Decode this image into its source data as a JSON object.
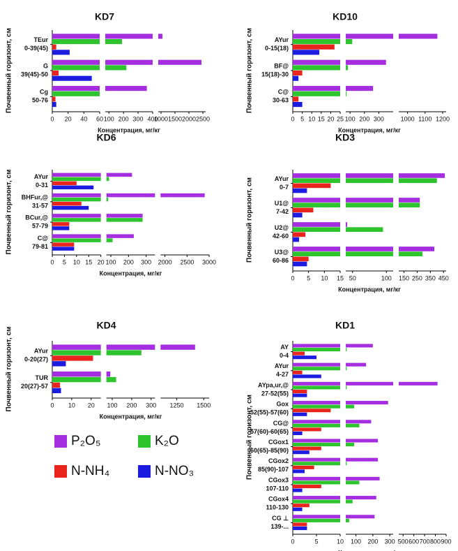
{
  "legend": [
    {
      "name": "P₂O₅",
      "color": "#a52ee0"
    },
    {
      "name": "K₂O",
      "color": "#2ec42e"
    },
    {
      "name": "N-NH₄",
      "color": "#e8241c"
    },
    {
      "name": "N-NO₃",
      "color": "#1c1ce0"
    }
  ],
  "chart_data": [
    {
      "type": "bar",
      "title": "KD7",
      "y_label": "Почвенный горизонт, см",
      "x_label": "Концентрация, мг/кг",
      "categories": [
        [
          "TEur",
          "0-39(45)"
        ],
        [
          "G",
          "39(45)-50"
        ],
        [
          "Cg",
          "50-76"
        ]
      ],
      "segments": [
        {
          "xlim": [
            0,
            60
          ],
          "xticks": [
            0,
            20,
            40,
            60
          ]
        },
        {
          "xlim": [
            75,
            400
          ],
          "xticks": [
            100,
            200,
            300,
            400
          ]
        },
        {
          "xlim": [
            900,
            2600
          ],
          "xticks": [
            1000,
            1500,
            2000,
            2500
          ]
        }
      ],
      "series": [
        {
          "color": "#a52ee0",
          "values": [
            1050,
            2450,
            360
          ]
        },
        {
          "color": "#2ec42e",
          "values": [
            190,
            220,
            60
          ]
        },
        {
          "color": "#e8241c",
          "values": [
            5,
            8,
            4
          ]
        },
        {
          "color": "#1c1ce0",
          "values": [
            22,
            50,
            5
          ]
        }
      ]
    },
    {
      "type": "bar",
      "title": "KD10",
      "y_label": "Почвенный горизонт, см",
      "x_label": "Концентрация, мг/кг",
      "categories": [
        [
          "AYur",
          "0-15(18)"
        ],
        [
          "BF@",
          "15(18)-30"
        ],
        [
          "C@",
          "30-63"
        ]
      ],
      "segments": [
        {
          "xlim": [
            0,
            25
          ],
          "xticks": [
            0,
            5,
            10,
            15,
            20,
            25
          ]
        },
        {
          "xlim": [
            70,
            400
          ],
          "xticks": [
            100,
            200,
            300
          ]
        },
        {
          "xlim": [
            950,
            1220
          ],
          "xticks": [
            1000,
            1100,
            1200
          ]
        }
      ],
      "series": [
        {
          "color": "#a52ee0",
          "values": [
            1170,
            350,
            260
          ]
        },
        {
          "color": "#2ec42e",
          "values": [
            115,
            85,
            75
          ]
        },
        {
          "color": "#e8241c",
          "values": [
            22,
            5,
            3
          ]
        },
        {
          "color": "#1c1ce0",
          "values": [
            14,
            3,
            5
          ]
        }
      ]
    },
    {
      "type": "bar",
      "title": "KD6",
      "y_label": "Почвенный горизонт, см",
      "x_label": "Концентрация, мг/кг",
      "categories": [
        [
          "AYur",
          "0-31"
        ],
        [
          "BHFur,@",
          "31-57"
        ],
        [
          "BCur,@",
          "57-79"
        ],
        [
          "C@",
          "79-81"
        ]
      ],
      "segments": [
        {
          "xlim": [
            0,
            20
          ],
          "xticks": [
            0,
            5,
            10,
            15,
            20
          ]
        },
        {
          "xlim": [
            75,
            350
          ],
          "xticks": [
            100,
            200,
            300
          ]
        },
        {
          "xlim": [
            1900,
            3000
          ],
          "xticks": [
            2000,
            2500,
            3000
          ]
        }
      ],
      "series": [
        {
          "color": "#a52ee0",
          "values": [
            220,
            2900,
            280,
            230
          ]
        },
        {
          "color": "#2ec42e",
          "values": [
            90,
            85,
            280,
            110
          ]
        },
        {
          "color": "#e8241c",
          "values": [
            10,
            12,
            7,
            9
          ]
        },
        {
          "color": "#1c1ce0",
          "values": [
            17,
            15,
            7,
            9
          ]
        }
      ]
    },
    {
      "type": "bar",
      "title": "KD3",
      "y_label": "Почвенный горизонт, см",
      "x_label": "Концентрация, мг/кг",
      "categories": [
        [
          "AYur",
          "0-7"
        ],
        [
          "U1@",
          "7-42"
        ],
        [
          "U2@",
          "42-60"
        ],
        [
          "U3@",
          "60-86"
        ]
      ],
      "segments": [
        {
          "xlim": [
            0,
            15
          ],
          "xticks": [
            0,
            5,
            10,
            15
          ]
        },
        {
          "xlim": [
            40,
            110
          ],
          "xticks": [
            50,
            100
          ]
        },
        {
          "xlim": [
            110,
            470
          ],
          "xticks": [
            150,
            250,
            350,
            450
          ]
        }
      ],
      "series": [
        {
          "color": "#a52ee0",
          "values": [
            460,
            270,
            42,
            380
          ]
        },
        {
          "color": "#2ec42e",
          "values": [
            400,
            270,
            95,
            290
          ]
        },
        {
          "color": "#e8241c",
          "values": [
            12,
            6.5,
            4,
            5
          ]
        },
        {
          "color": "#1c1ce0",
          "values": [
            4.5,
            3,
            2,
            4.5
          ]
        }
      ]
    },
    {
      "type": "bar",
      "title": "KD4",
      "y_label": "Почвенный горизонт, см",
      "x_label": "Концентрация, мг/кг",
      "categories": [
        [
          "AYur",
          "0-20(27)"
        ],
        [
          "TUR",
          "20(27)-57"
        ]
      ],
      "segments": [
        {
          "xlim": [
            0,
            25
          ],
          "xticks": [
            0,
            10,
            20
          ]
        },
        {
          "xlim": [
            70,
            320
          ],
          "xticks": [
            100,
            200,
            300
          ]
        },
        {
          "xlim": [
            1100,
            1550
          ],
          "xticks": [
            1250,
            1500
          ]
        }
      ],
      "series": [
        {
          "color": "#a52ee0",
          "values": [
            1420,
            90
          ]
        },
        {
          "color": "#2ec42e",
          "values": [
            250,
            120
          ]
        },
        {
          "color": "#e8241c",
          "values": [
            21,
            4
          ]
        },
        {
          "color": "#1c1ce0",
          "values": [
            7,
            4.5
          ]
        }
      ]
    },
    {
      "type": "bar",
      "title": "KD1",
      "y_label": "Почвенный горизонт, см",
      "x_label": "Концентрация, мг/кг",
      "categories": [
        [
          "AY",
          "0-4"
        ],
        [
          "AYur",
          "4-27"
        ],
        [
          "AYpa,ur,@",
          "27-52(55)"
        ],
        [
          "Gox",
          "52(55)-57(60)"
        ],
        [
          "CG@",
          "57(60)-60(65)"
        ],
        [
          "CGox1",
          "60(65)-85(90)"
        ],
        [
          "CGox2",
          "85(90)-107"
        ],
        [
          "CGox3",
          "107-110"
        ],
        [
          "CGox4",
          "110-130"
        ],
        [
          "CG ⊥",
          "139-..."
        ]
      ],
      "segments": [
        {
          "xlim": [
            0,
            10
          ],
          "xticks": [
            0,
            5,
            10
          ]
        },
        {
          "xlim": [
            40,
            320
          ],
          "xticks": [
            100,
            200,
            300
          ]
        },
        {
          "xlim": [
            460,
            900
          ],
          "xticks": [
            500,
            600,
            700,
            800,
            900
          ]
        }
      ],
      "series": [
        {
          "color": "#a52ee0",
          "values": [
            200,
            160,
            820,
            290,
            190,
            230,
            230,
            240,
            220,
            210
          ]
        },
        {
          "color": "#2ec42e",
          "values": [
            45,
            45,
            45,
            90,
            120,
            90,
            45,
            120,
            80,
            60
          ]
        },
        {
          "color": "#e8241c",
          "values": [
            2.5,
            2,
            3,
            8,
            6,
            6,
            4.5,
            6,
            3.5,
            3
          ]
        },
        {
          "color": "#1c1ce0",
          "values": [
            5,
            6,
            3,
            3,
            2,
            3.5,
            2.5,
            2,
            2,
            3
          ]
        }
      ]
    }
  ]
}
